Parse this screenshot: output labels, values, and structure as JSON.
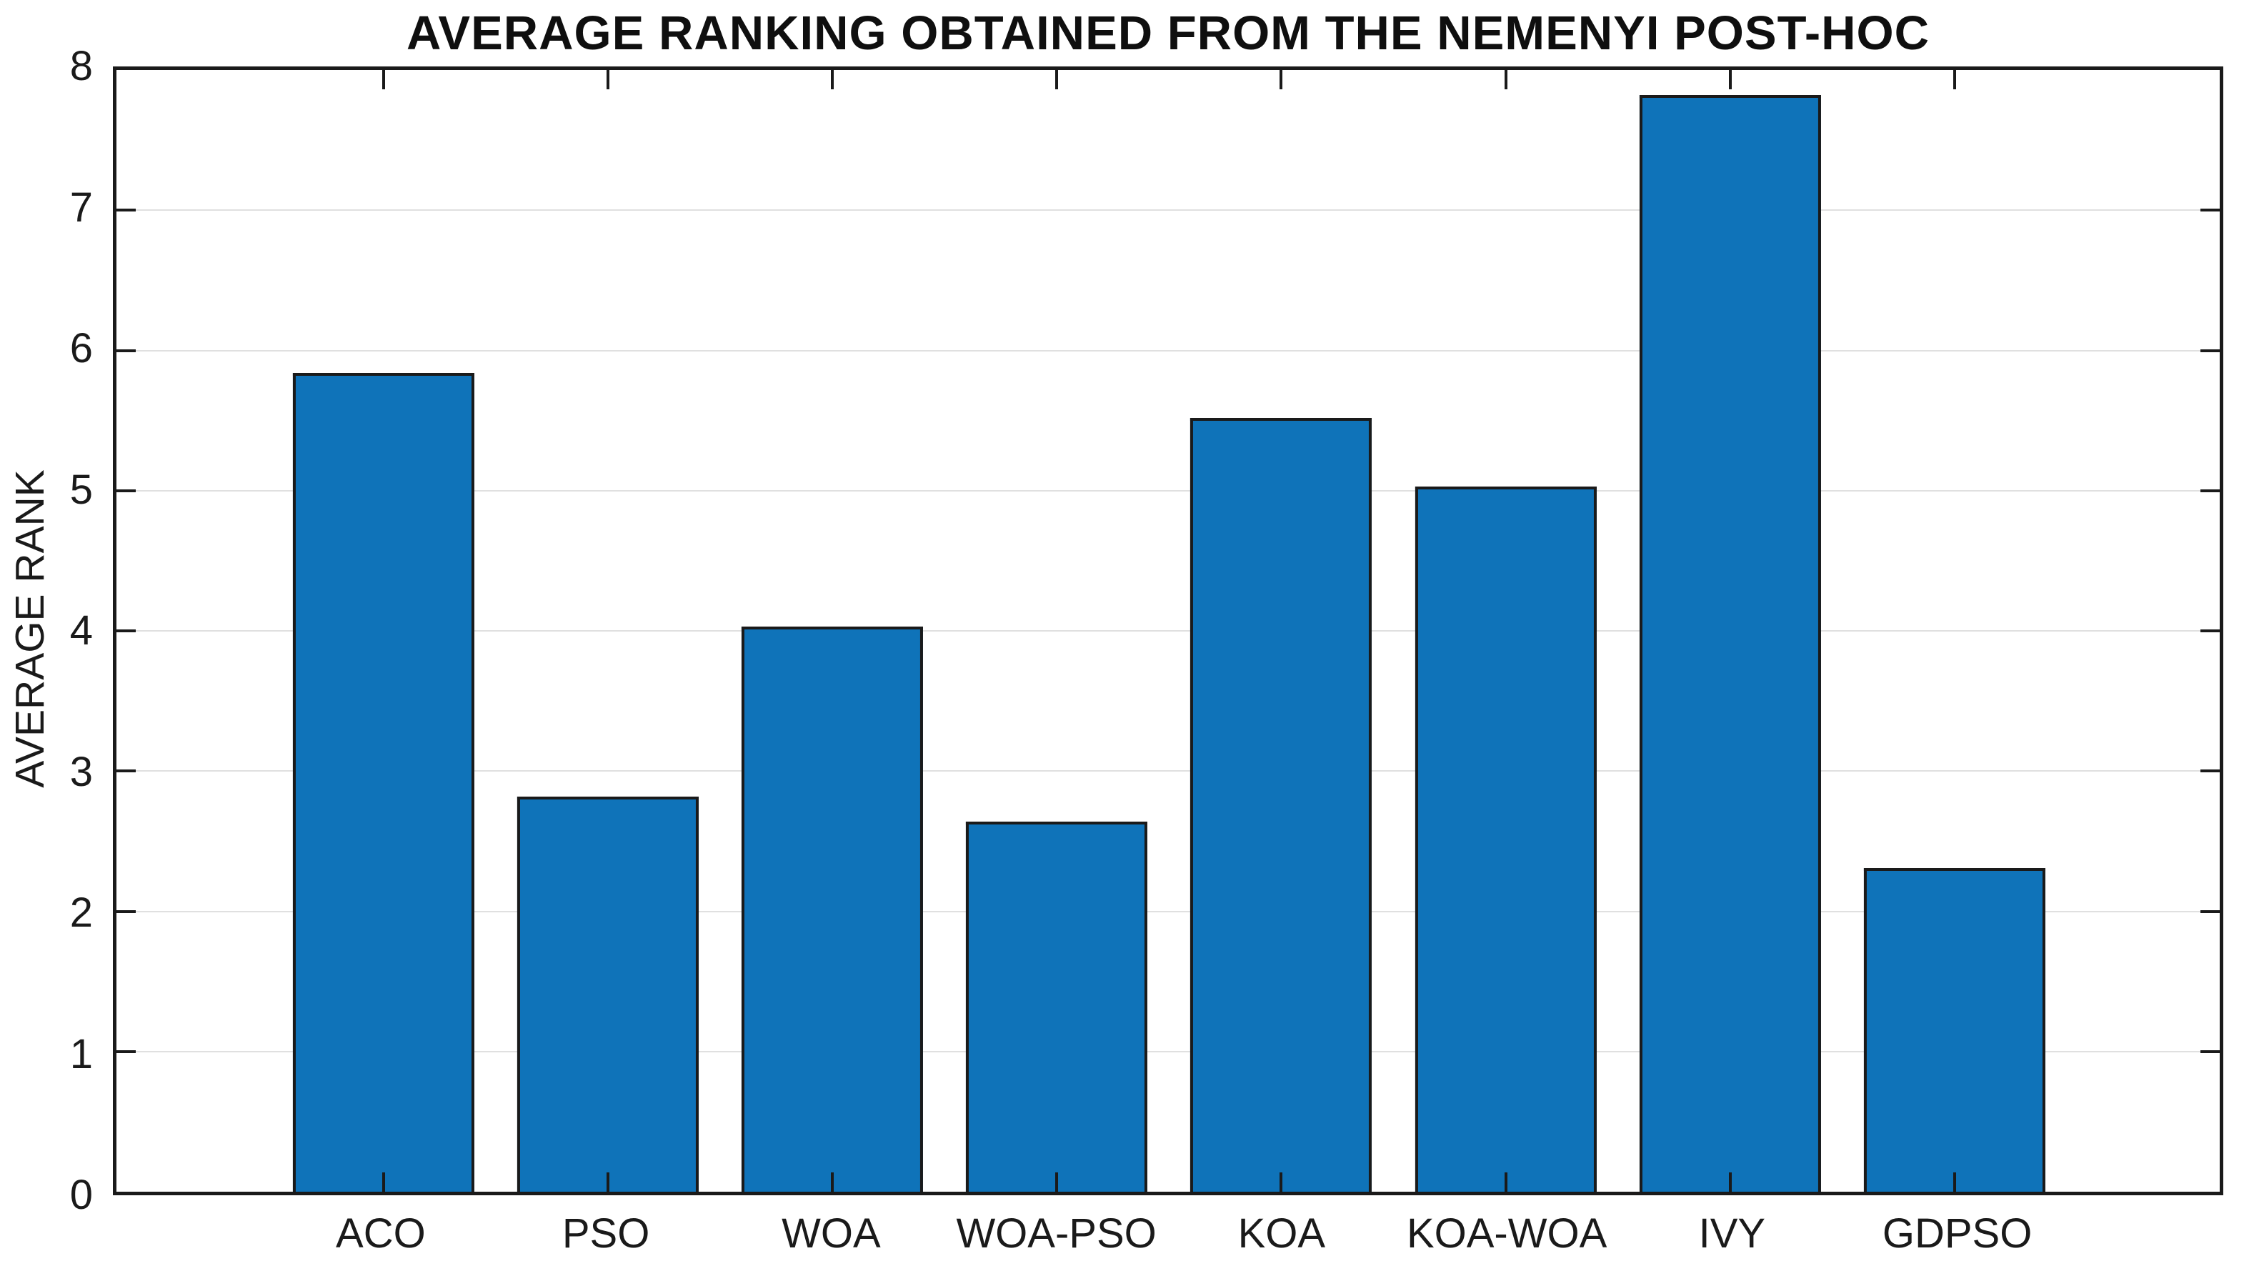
{
  "figure": {
    "title": "AVERAGE RANKING OBTAINED FROM THE NEMENYI POST-HOC",
    "y_axis_label": "AVERAGE RANK"
  },
  "chart_data": {
    "type": "bar",
    "title": "AVERAGE RANKING OBTAINED FROM THE NEMENYI POST-HOC",
    "xlabel": "",
    "ylabel": "AVERAGE RANK",
    "categories": [
      "ACO",
      "PSO",
      "WOA",
      "WOA-PSO",
      "KOA",
      "KOA-WOA",
      "IVY",
      "GDPSO"
    ],
    "values": [
      5.84,
      2.82,
      4.03,
      2.64,
      5.52,
      5.03,
      7.82,
      2.31
    ],
    "ylim": [
      0,
      8
    ],
    "yticks": [
      0,
      1,
      2,
      3,
      4,
      5,
      6,
      7,
      8
    ],
    "grid": "horizontal-only",
    "legend": "none",
    "box": true,
    "tick_direction": "in",
    "colors": {
      "bar_fill": "#0F73B9",
      "bar_edge": "#1A1A1A",
      "axis": "#1A1A1A",
      "grid": "#E0E0E0",
      "text": "#1A1A1A",
      "title_text": "#0F0F0F",
      "background": "#FFFFFF"
    }
  }
}
